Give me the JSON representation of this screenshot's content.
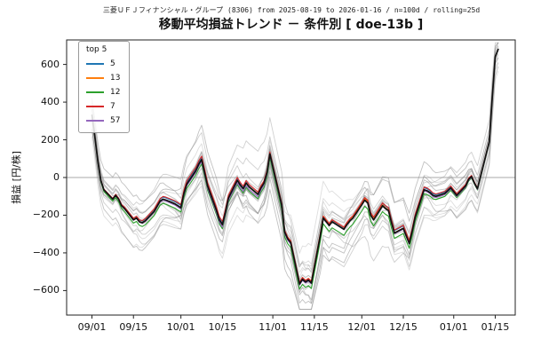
{
  "header": {
    "subtitle": "三菱ＵＦＪフィナンシャル・グループ (8306) from 2025-08-19 to 2026-01-16 / n=100d / rolling=25d",
    "title": "移動平均損益トレンド － 条件別 [ doe-13b ]"
  },
  "chart_data": {
    "type": "line",
    "title": "移動平均損益トレンド － 条件別 [ doe-13b ]",
    "xlabel": "",
    "ylabel": "損益 [円/株]",
    "ylim": [
      -730,
      730
    ],
    "grid": "horizontal zero-line only",
    "legend": {
      "title": "top 5",
      "position": "upper-left"
    },
    "x_ticks": [
      "09/01",
      "09/15",
      "10/01",
      "10/15",
      "11/01",
      "11/15",
      "12/01",
      "12/15",
      "01/01",
      "01/15"
    ],
    "y_ticks": [
      {
        "value": 600,
        "label": "600"
      },
      {
        "value": 400,
        "label": "400"
      },
      {
        "value": 200,
        "label": "200"
      },
      {
        "value": 0,
        "label": "0"
      },
      {
        "value": -200,
        "label": "−200"
      },
      {
        "value": -400,
        "label": "−400"
      },
      {
        "value": -600,
        "label": "−600"
      }
    ],
    "x": [
      "09/01",
      "09/02",
      "09/03",
      "09/04",
      "09/05",
      "09/08",
      "09/09",
      "09/10",
      "09/11",
      "09/12",
      "09/15",
      "09/16",
      "09/17",
      "09/18",
      "09/19",
      "09/22",
      "09/24",
      "09/25",
      "09/26",
      "09/29",
      "09/30",
      "10/01",
      "10/02",
      "10/03",
      "10/06",
      "10/07",
      "10/08",
      "10/09",
      "10/10",
      "10/13",
      "10/14",
      "10/15",
      "10/16",
      "10/17",
      "10/20",
      "10/21",
      "10/22",
      "10/23",
      "10/24",
      "10/27",
      "10/28",
      "10/29",
      "10/30",
      "10/31",
      "11/04",
      "11/05",
      "11/06",
      "11/07",
      "11/10",
      "11/11",
      "11/12",
      "11/13",
      "11/14",
      "11/17",
      "11/18",
      "11/19",
      "11/20",
      "11/21",
      "11/25",
      "11/26",
      "11/27",
      "11/28",
      "12/01",
      "12/02",
      "12/03",
      "12/04",
      "12/05",
      "12/08",
      "12/09",
      "12/10",
      "12/11",
      "12/12",
      "12/15",
      "12/16",
      "12/17",
      "12/18",
      "12/19",
      "12/22",
      "12/23",
      "12/24",
      "12/25",
      "12/26",
      "12/29",
      "12/30",
      "12/31",
      "01/02",
      "01/05",
      "01/06",
      "01/07",
      "01/08",
      "01/09",
      "01/13",
      "01/14",
      "01/15",
      "01/16"
    ],
    "median": [
      330,
      215,
      85,
      -15,
      -65,
      -115,
      -95,
      -115,
      -150,
      -165,
      -225,
      -215,
      -235,
      -240,
      -230,
      -180,
      -125,
      -115,
      -120,
      -140,
      -150,
      -160,
      -85,
      -35,
      35,
      70,
      95,
      25,
      -45,
      -175,
      -225,
      -250,
      -185,
      -110,
      -15,
      -40,
      -60,
      -30,
      -50,
      -90,
      -55,
      -30,
      25,
      125,
      -145,
      -290,
      -325,
      -345,
      -565,
      -540,
      -555,
      -545,
      -560,
      -310,
      -215,
      -235,
      -255,
      -235,
      -275,
      -250,
      -230,
      -215,
      -145,
      -120,
      -135,
      -200,
      -225,
      -150,
      -165,
      -175,
      -240,
      -295,
      -270,
      -310,
      -350,
      -285,
      -210,
      -65,
      -70,
      -80,
      -95,
      -100,
      -85,
      -70,
      -55,
      -95,
      -45,
      -10,
      5,
      -30,
      -60,
      190,
      430,
      640,
      680
    ],
    "median_color": "#111111",
    "series": [
      {
        "name": "5",
        "color": "#1f77b4",
        "offset": 10
      },
      {
        "name": "13",
        "color": "#ff7f0e",
        "offset": 4
      },
      {
        "name": "12",
        "color": "#2ca02c",
        "offset": -30
      },
      {
        "name": "7",
        "color": "#d62728",
        "offset": 16
      },
      {
        "name": "57",
        "color": "#9467bd",
        "offset": -8
      }
    ],
    "background_lines": {
      "count": 16,
      "color": "#8a8a8a",
      "note": "other parameter conditions, gray"
    }
  }
}
